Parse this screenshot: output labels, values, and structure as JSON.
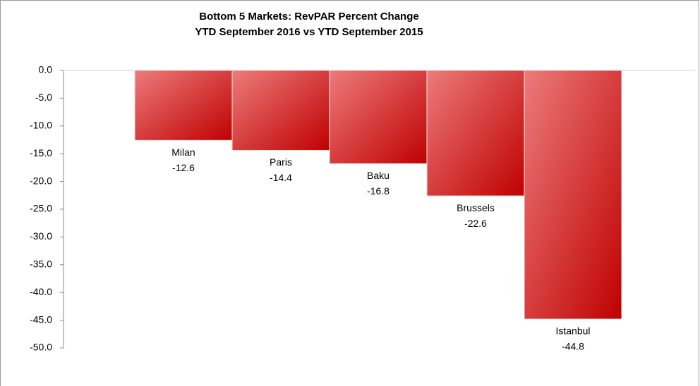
{
  "chart_data": {
    "type": "bar",
    "title": "Bottom 5 Markets: RevPAR Percent Change",
    "subtitle": "YTD September 2016 vs YTD September 2015",
    "categories": [
      "Milan",
      "Paris",
      "Baku",
      "Brussels",
      "Istanbul"
    ],
    "values": [
      -12.6,
      -14.4,
      -16.8,
      -22.6,
      -44.8
    ],
    "color": "#c00000",
    "ylim": [
      -50,
      0
    ],
    "yticks": [
      {
        "value": 0,
        "label": "0.0"
      },
      {
        "value": -5,
        "label": "-5.0"
      },
      {
        "value": -10,
        "label": "-10.0"
      },
      {
        "value": -15,
        "label": "-15.0"
      },
      {
        "value": -20,
        "label": "-20.0"
      },
      {
        "value": -25,
        "label": "-25.0"
      },
      {
        "value": -30,
        "label": "-30.0"
      },
      {
        "value": -35,
        "label": "-35.0"
      },
      {
        "value": -40,
        "label": "-40.0"
      },
      {
        "value": -45,
        "label": "-45.0"
      },
      {
        "value": -50,
        "label": "-50.0"
      }
    ]
  }
}
